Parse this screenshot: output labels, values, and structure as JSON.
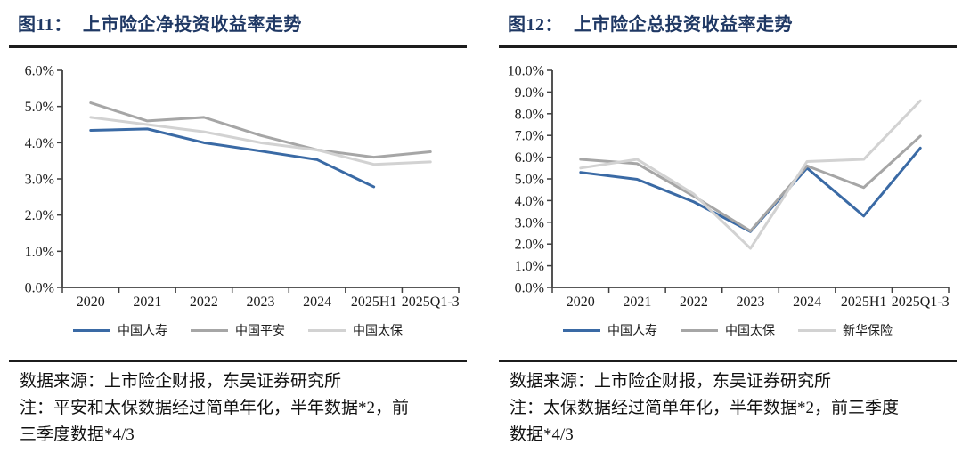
{
  "page": {
    "background": "#ffffff",
    "text_color": "#1a1a1a",
    "title_color": "#1f3864",
    "rule_color": "#1c1c1c",
    "axis_color": "#404040"
  },
  "figures": [
    {
      "title": {
        "prefix": "图11：",
        "text": "上市险企净投资收益率走势"
      },
      "source_line": "数据来源：上市险企财报，东吴证券研究所",
      "note_line1": "注：平安和太保数据经过简单年化，半年数据*2，前",
      "note_line2": "三季度数据*4/3"
    },
    {
      "title": {
        "prefix": "图12：",
        "text": "上市险企总投资收益率走势"
      },
      "source_line": "数据来源：上市险企财报，东吴证券研究所",
      "note_line1": "注：太保数据经过简单年化，半年数据*2，前三季度",
      "note_line2": "数据*4/3"
    }
  ],
  "chart_data": [
    {
      "type": "line",
      "title": "图11：上市险企净投资收益率走势",
      "categories": [
        "2020",
        "2021",
        "2022",
        "2023",
        "2024",
        "2025H1",
        "2025Q1-3"
      ],
      "series": [
        {
          "name": "中国人寿",
          "color": "#3a6aa5",
          "values": [
            4.34,
            4.38,
            4.0,
            3.77,
            3.53,
            2.78,
            null
          ]
        },
        {
          "name": "中国平安",
          "color": "#a6a6a6",
          "values": [
            5.1,
            4.6,
            4.7,
            4.2,
            3.8,
            3.6,
            3.75
          ]
        },
        {
          "name": "中国太保",
          "color": "#d2d2d2",
          "values": [
            4.7,
            4.5,
            4.3,
            4.0,
            3.8,
            3.4,
            3.47
          ]
        }
      ],
      "xlabel": "",
      "ylabel": "",
      "ylim": [
        0,
        6
      ],
      "ytick_step": 1,
      "ytick_format": "0.0%",
      "grid": false,
      "legend_position": "bottom"
    },
    {
      "type": "line",
      "title": "图12：上市险企总投资收益率走势",
      "categories": [
        "2020",
        "2021",
        "2022",
        "2023",
        "2024",
        "2025H1",
        "2025Q1-3"
      ],
      "series": [
        {
          "name": "中国人寿",
          "color": "#3a6aa5",
          "values": [
            5.3,
            4.98,
            3.94,
            2.57,
            5.5,
            3.29,
            6.42
          ]
        },
        {
          "name": "中国太保",
          "color": "#a6a6a6",
          "values": [
            5.9,
            5.7,
            4.2,
            2.6,
            5.6,
            4.6,
            6.97
          ]
        },
        {
          "name": "新华保险",
          "color": "#d2d2d2",
          "values": [
            5.5,
            5.9,
            4.3,
            1.8,
            5.8,
            5.9,
            8.6
          ]
        }
      ],
      "xlabel": "",
      "ylabel": "",
      "ylim": [
        0,
        10
      ],
      "ytick_step": 1,
      "ytick_format": "0.0%",
      "grid": false,
      "legend_position": "bottom"
    }
  ]
}
